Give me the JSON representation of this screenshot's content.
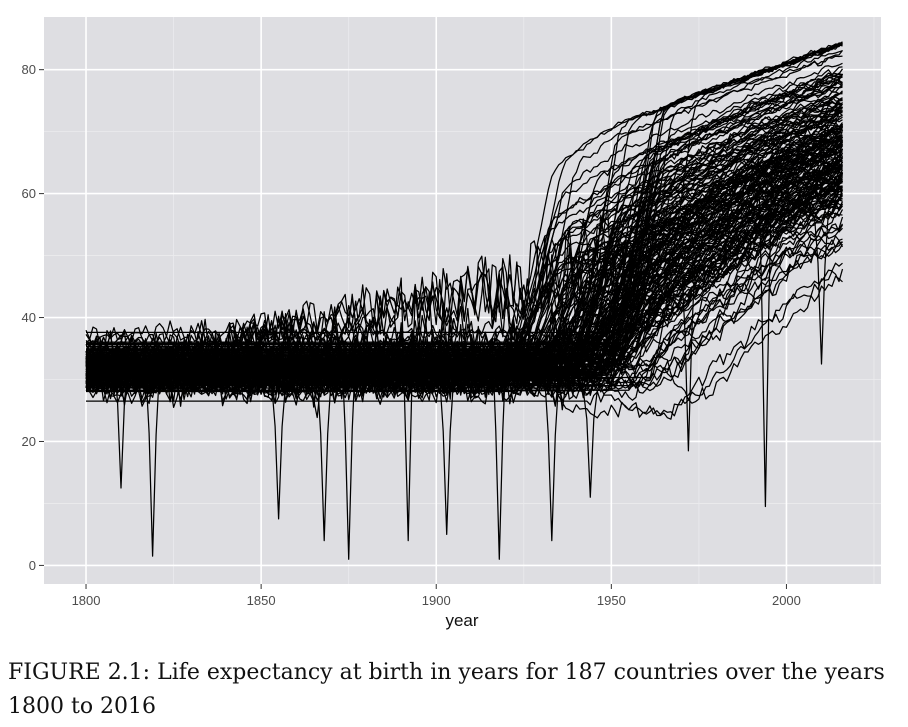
{
  "chart_data": {
    "type": "line",
    "xlabel": "year",
    "ylabel": "",
    "xlim": [
      1788,
      2027
    ],
    "ylim": [
      -3,
      88.5
    ],
    "xticks": [
      1800,
      1850,
      1900,
      1950,
      2000
    ],
    "yticks": [
      0,
      20,
      40,
      60,
      80
    ],
    "grid": true,
    "legend": "none",
    "panel_color": "#dedee2",
    "line_color": "#000000",
    "series_count": 187,
    "year_range": [
      1800,
      2016
    ],
    "summary": {
      "pre1920_band": [
        23,
        40
      ],
      "typical_pre1920": 32,
      "upper_envelope": [
        [
          1800,
          41
        ],
        [
          1850,
          45
        ],
        [
          1870,
          50
        ],
        [
          1900,
          56
        ],
        [
          1925,
          62
        ],
        [
          1950,
          72
        ],
        [
          2016,
          85
        ]
      ],
      "median_path": [
        [
          1800,
          32
        ],
        [
          1900,
          33
        ],
        [
          1920,
          34
        ],
        [
          1940,
          42
        ],
        [
          1950,
          50
        ],
        [
          1980,
          64
        ],
        [
          2000,
          70
        ],
        [
          2016,
          75
        ]
      ],
      "lower_envelope": [
        [
          1800,
          23
        ],
        [
          1900,
          23.5
        ],
        [
          1950,
          24
        ],
        [
          1960,
          30
        ],
        [
          1990,
          45
        ],
        [
          2016,
          52
        ]
      ],
      "notable_dips": [
        {
          "year": 1810,
          "value": 12.5
        },
        {
          "year": 1819,
          "value": 1.5
        },
        {
          "year": 1855,
          "value": 7.5
        },
        {
          "year": 1868,
          "value": 4
        },
        {
          "year": 1875,
          "value": 1
        },
        {
          "year": 1892,
          "value": 4
        },
        {
          "year": 1903,
          "value": 5
        },
        {
          "year": 1918,
          "value": 1
        },
        {
          "year": 1933,
          "value": 4
        },
        {
          "year": 1944,
          "value": 11
        },
        {
          "year": 1972,
          "value": 18.5
        },
        {
          "year": 1994,
          "value": 9.5
        },
        {
          "year": 2010,
          "value": 32.5
        }
      ]
    }
  },
  "caption": {
    "text": "FIGURE 2.1: Life expectancy at birth in years for 187 countries over the years 1800 to 2016"
  }
}
